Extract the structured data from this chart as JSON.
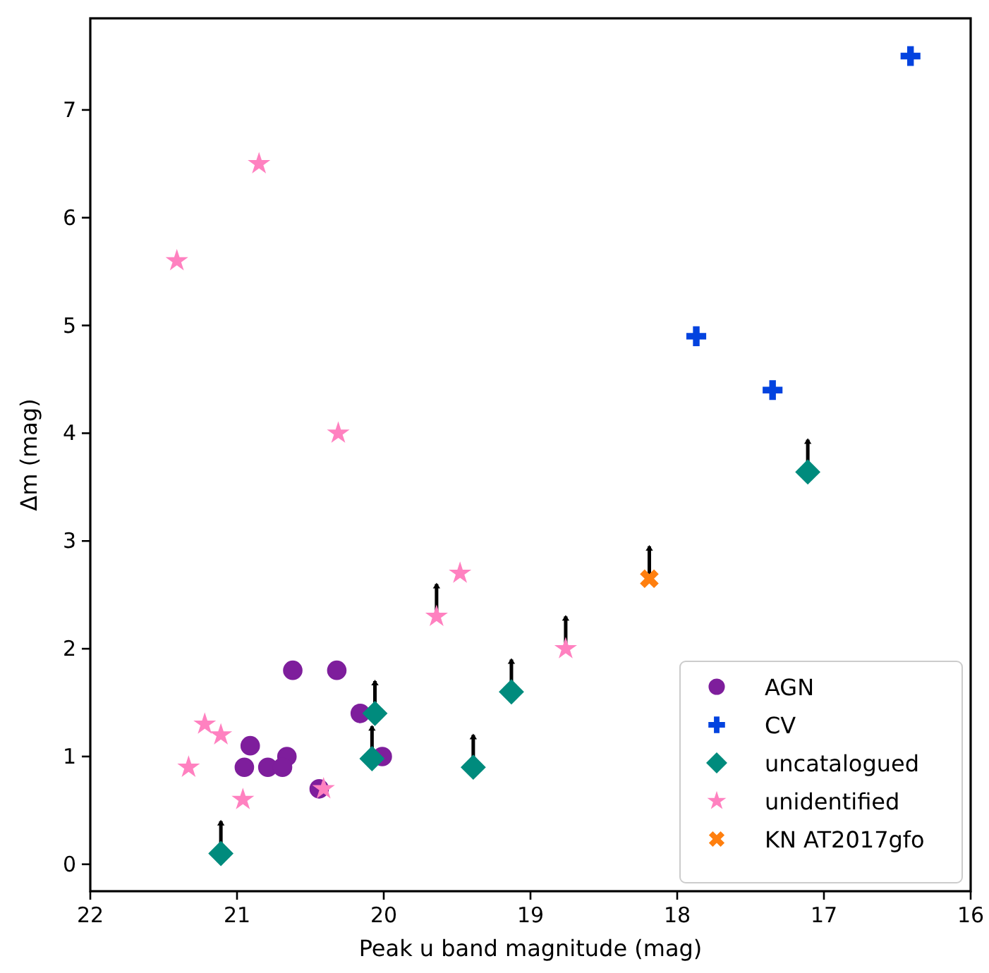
{
  "chart_data": {
    "type": "scatter",
    "xlabel": "Peak u band magnitude (mag)",
    "ylabel": "Δm (mag)",
    "xlim": [
      22,
      16
    ],
    "xticks": [
      22,
      21,
      20,
      19,
      18,
      17,
      16
    ],
    "ylim": [
      -0.25,
      7.85
    ],
    "yticks": [
      0,
      1,
      2,
      3,
      4,
      5,
      6,
      7
    ],
    "grid": false,
    "legend": "bottom right",
    "series": [
      {
        "name": "AGN",
        "color": "#7e1e9c",
        "marker": "circle",
        "x": [
          20.62,
          20.32,
          20.16,
          20.91,
          20.95,
          20.79,
          20.66,
          20.69,
          20.01,
          20.44
        ],
        "values": [
          1.8,
          1.8,
          1.4,
          1.1,
          0.9,
          0.9,
          1.0,
          0.9,
          1.0,
          0.7
        ]
      },
      {
        "name": "CV",
        "color": "#0343df",
        "marker": "cross",
        "x": [
          16.41,
          17.87,
          17.35
        ],
        "values": [
          7.5,
          4.9,
          4.4
        ]
      },
      {
        "name": "uncatalogued",
        "color": "#008b7d",
        "marker": "diamond",
        "x": [
          21.11,
          20.06,
          20.08,
          19.39,
          19.13,
          17.11
        ],
        "values": [
          0.1,
          1.4,
          0.98,
          0.9,
          1.6,
          3.64
        ],
        "errors": [
          [
            0.1,
            0.4
          ],
          [
            1.4,
            1.7
          ],
          [
            0.98,
            1.28
          ],
          [
            0.9,
            1.2
          ],
          [
            1.6,
            1.9
          ],
          [
            3.64,
            3.94
          ]
        ]
      },
      {
        "name": "unidentified",
        "color": "#ff81c0",
        "marker": "star",
        "x": [
          21.41,
          20.85,
          20.31,
          21.22,
          21.11,
          21.33,
          20.96,
          20.41,
          19.64,
          19.48,
          18.76
        ],
        "values": [
          5.6,
          6.5,
          4.0,
          1.3,
          1.2,
          0.9,
          0.6,
          0.7,
          2.3,
          2.7,
          2.0
        ],
        "errors": [
          null,
          null,
          null,
          null,
          null,
          null,
          null,
          null,
          [
            2.3,
            2.6
          ],
          null,
          [
            2.0,
            2.3
          ]
        ]
      },
      {
        "name": "KN AT2017gfo",
        "color": "#ff7f0e",
        "marker": "x",
        "x": [
          18.19
        ],
        "values": [
          2.65
        ],
        "errors": [
          [
            2.65,
            2.95
          ]
        ]
      }
    ]
  }
}
